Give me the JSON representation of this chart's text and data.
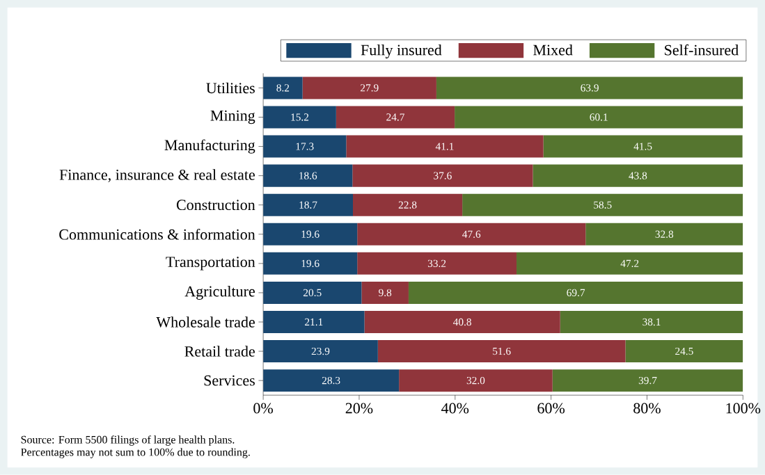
{
  "chart_data": {
    "type": "bar",
    "orientation": "horizontal",
    "stacked": true,
    "categories": [
      "Utilities",
      "Mining",
      "Manufacturing",
      "Finance, insurance & real estate",
      "Construction",
      "Communications & information",
      "Transportation",
      "Agriculture",
      "Wholesale trade",
      "Retail trade",
      "Services"
    ],
    "series": [
      {
        "name": "Fully insured",
        "color": "#1a476f",
        "values": [
          8.2,
          15.2,
          17.3,
          18.6,
          18.7,
          19.6,
          19.6,
          20.5,
          21.1,
          23.9,
          28.3
        ],
        "value_labels": [
          "8.2",
          "15.2",
          "17.3",
          "18.6",
          "18.7",
          "19.6",
          "19.6",
          "20.5",
          "21.1",
          "23.9",
          "28.3"
        ]
      },
      {
        "name": "Mixed",
        "color": "#90353b",
        "values": [
          27.9,
          24.7,
          41.1,
          37.6,
          22.8,
          47.6,
          33.2,
          9.8,
          40.8,
          51.6,
          32.0
        ],
        "value_labels": [
          "27.9",
          "24.7",
          "41.1",
          "37.6",
          "22.8",
          "47.6",
          "33.2",
          "9.8",
          "40.8",
          "51.6",
          "32.0"
        ]
      },
      {
        "name": "Self-insured",
        "color": "#55752f",
        "values": [
          63.9,
          60.1,
          41.5,
          43.8,
          58.5,
          32.8,
          47.2,
          69.7,
          38.1,
          24.5,
          39.7
        ],
        "value_labels": [
          "63.9",
          "60.1",
          "41.5",
          "43.8",
          "58.5",
          "32.8",
          "47.2",
          "69.7",
          "38.1",
          "24.5",
          "39.7"
        ]
      }
    ],
    "xlim": [
      0,
      100
    ],
    "xticks": [
      {
        "value": 0,
        "label": "0%"
      },
      {
        "value": 20,
        "label": "20%"
      },
      {
        "value": 40,
        "label": "40%"
      },
      {
        "value": 60,
        "label": "60%"
      },
      {
        "value": 80,
        "label": "80%"
      },
      {
        "value": 100,
        "label": "100%"
      }
    ],
    "legend": "top",
    "annotations": [
      "Source: Form 5500 filings of large health plans.",
      "Percentages may not sum to 100% due to rounding."
    ]
  }
}
